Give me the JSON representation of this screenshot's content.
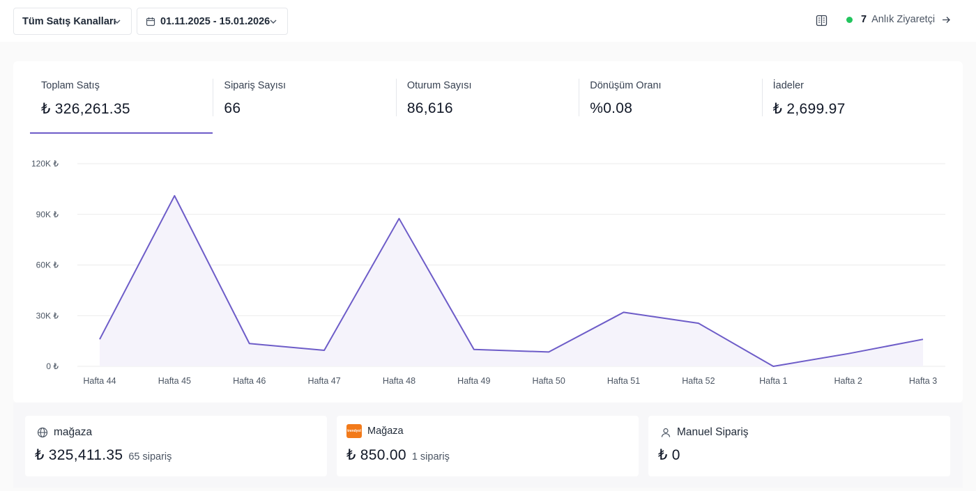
{
  "header": {
    "channel_select": "Tüm Satış Kanalları",
    "date_range": "01.11.2025 - 15.01.2026",
    "visitors": {
      "count": "7",
      "label": "Anlık Ziyaretçi"
    }
  },
  "kpis": [
    {
      "label": "Toplam Satış",
      "value": "₺ 326,261.35",
      "active": true
    },
    {
      "label": "Sipariş Sayısı",
      "value": "66"
    },
    {
      "label": "Oturum Sayısı",
      "value": "86,616"
    },
    {
      "label": "Dönüşüm Oranı",
      "value": "%0.08"
    },
    {
      "label": "İadeler",
      "value": "₺ 2,699.97"
    }
  ],
  "chart_data": {
    "type": "area",
    "categories": [
      "Hafta 44",
      "Hafta 45",
      "Hafta 46",
      "Hafta 47",
      "Hafta 48",
      "Hafta 49",
      "Hafta 50",
      "Hafta 51",
      "Hafta 52",
      "Hafta 1",
      "Hafta 2",
      "Hafta 3"
    ],
    "values": [
      16000,
      101000,
      13500,
      9500,
      87500,
      10000,
      8500,
      32000,
      25500,
      0,
      7500,
      16000
    ],
    "yticks": [
      "0 ₺",
      "30K ₺",
      "60K ₺",
      "90K ₺",
      "120K ₺"
    ],
    "ylim": [
      0,
      120000
    ],
    "grid": true,
    "line_color": "#6d5cc8",
    "fill_color": "#f5f3fb"
  },
  "channels": [
    {
      "name": "mağaza",
      "icon": "globe-icon",
      "amount": "₺ 325,411.35",
      "orders": "65 sipariş"
    },
    {
      "name": "Mağaza",
      "icon": "trendyol-logo",
      "logo_text": "trendyol",
      "amount": "₺ 850.00",
      "orders": "1 sipariş"
    },
    {
      "name": "Manuel Sipariş",
      "icon": "user-icon",
      "amount": "₺ 0",
      "orders": ""
    }
  ]
}
